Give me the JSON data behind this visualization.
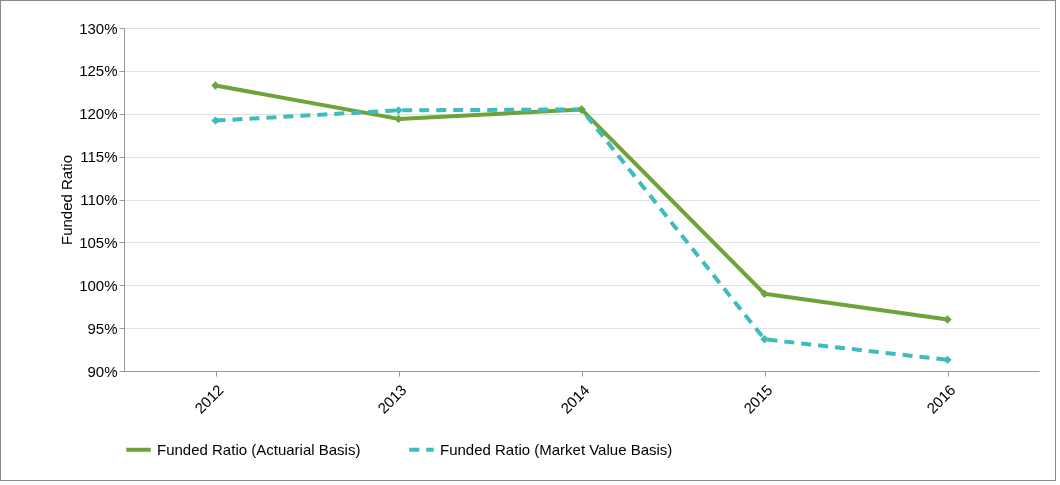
{
  "chart_data": {
    "type": "line",
    "ylabel": "Funded Ratio",
    "categories": [
      "2012",
      "2013",
      "2014",
      "2015",
      "2016"
    ],
    "series": [
      {
        "name": "Funded Ratio (Actuarial Basis)",
        "color": "#6ea33a",
        "line_style": "solid",
        "values": [
          123.3,
          119.4,
          120.5,
          99.0,
          96.0
        ]
      },
      {
        "name": "Funded Ratio (Market Value Basis)",
        "color": "#3cbcbc",
        "line_style": "dashed",
        "values": [
          119.2,
          120.4,
          120.5,
          93.7,
          91.3
        ]
      }
    ],
    "ylim": [
      90,
      130
    ],
    "yticks": [
      {
        "value": 90,
        "label": "90%"
      },
      {
        "value": 95,
        "label": "95%"
      },
      {
        "value": 100,
        "label": "100%"
      },
      {
        "value": 105,
        "label": "105%"
      },
      {
        "value": 110,
        "label": "110%"
      },
      {
        "value": 115,
        "label": "115%"
      },
      {
        "value": 120,
        "label": "120%"
      },
      {
        "value": 125,
        "label": "125%"
      },
      {
        "value": 130,
        "label": "130%"
      }
    ],
    "grid": "y",
    "legend": "bottom",
    "marker": "diamond"
  }
}
